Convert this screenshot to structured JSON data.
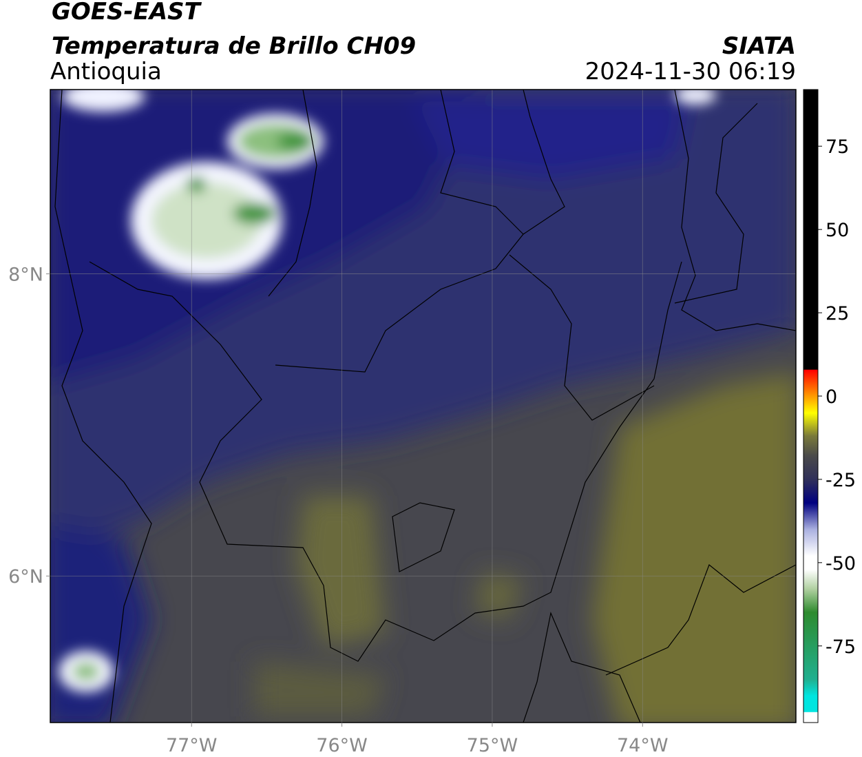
{
  "header": {
    "title": "GOES-EAST",
    "subtitle": "Temperatura de Brillo CH09",
    "region": "Antioquia",
    "source": "SIATA",
    "datetime": "2024-11-30 06:19"
  },
  "map": {
    "lonlim": [
      -77.94,
      -72.98
    ],
    "latlim": [
      5.03,
      9.22
    ],
    "lonticks": [
      {
        "value": -77,
        "label": "77°W"
      },
      {
        "value": -76,
        "label": "76°W"
      },
      {
        "value": -75,
        "label": "75°W"
      },
      {
        "value": -74,
        "label": "74°W"
      }
    ],
    "latticks": [
      {
        "value": 8,
        "label": "8°N"
      },
      {
        "value": 6,
        "label": "6°N"
      }
    ]
  },
  "colorbar": {
    "lim": [
      -98,
      92
    ],
    "ticks": [
      -75,
      -50,
      -25,
      0,
      25,
      50,
      75
    ]
  }
}
